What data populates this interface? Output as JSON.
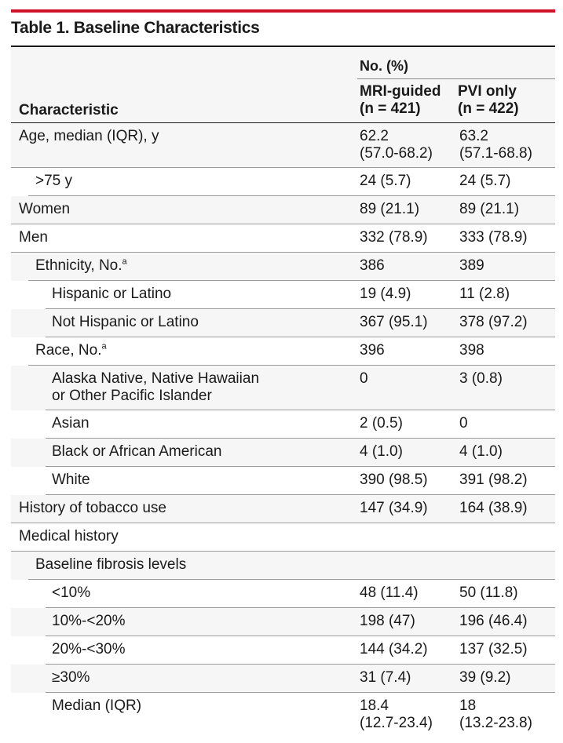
{
  "title": "Table 1. Baseline Characteristics",
  "header": {
    "group_label": "No. (%)",
    "characteristic_label": "Characteristic",
    "col_mri": "MRI-guided\n(n = 421)",
    "col_pvi": "PVI only\n(n = 422)"
  },
  "rows": [
    {
      "label": "Age, median (IQR), y",
      "mri": "62.2\n(57.0-68.2)",
      "pvi": "63.2\n(57.1-68.8)",
      "level": 0,
      "sup": ""
    },
    {
      "label": ">75 y",
      "mri": "24 (5.7)",
      "pvi": "24 (5.7)",
      "level": 1,
      "sup": ""
    },
    {
      "label": "Women",
      "mri": "89 (21.1)",
      "pvi": "89 (21.1)",
      "level": 0,
      "sup": ""
    },
    {
      "label": "Men",
      "mri": "332 (78.9)",
      "pvi": "333 (78.9)",
      "level": 0,
      "sup": ""
    },
    {
      "label": "Ethnicity, No.",
      "mri": "386",
      "pvi": "389",
      "level": 1,
      "sup": "a"
    },
    {
      "label": "Hispanic or Latino",
      "mri": "19 (4.9)",
      "pvi": "11 (2.8)",
      "level": 2,
      "sup": ""
    },
    {
      "label": "Not Hispanic or Latino",
      "mri": "367 (95.1)",
      "pvi": "378 (97.2)",
      "level": 2,
      "sup": ""
    },
    {
      "label": "Race, No.",
      "mri": "396",
      "pvi": "398",
      "level": 1,
      "sup": "a"
    },
    {
      "label": "Alaska Native, Native Hawaiian\nor Other Pacific Islander",
      "mri": "0",
      "pvi": "3 (0.8)",
      "level": 2,
      "sup": ""
    },
    {
      "label": "Asian",
      "mri": "2 (0.5)",
      "pvi": "0",
      "level": 2,
      "sup": ""
    },
    {
      "label": "Black or African American",
      "mri": "4 (1.0)",
      "pvi": "4 (1.0)",
      "level": 2,
      "sup": ""
    },
    {
      "label": "White",
      "mri": "390 (98.5)",
      "pvi": "391 (98.2)",
      "level": 2,
      "sup": ""
    },
    {
      "label": "History of tobacco use",
      "mri": "147 (34.9)",
      "pvi": "164 (38.9)",
      "level": 0,
      "sup": ""
    },
    {
      "label": "Medical history",
      "mri": "",
      "pvi": "",
      "level": 0,
      "sup": ""
    },
    {
      "label": "Baseline fibrosis levels",
      "mri": "",
      "pvi": "",
      "level": 1,
      "sup": ""
    },
    {
      "label": "<10%",
      "mri": "48 (11.4)",
      "pvi": "50 (11.8)",
      "level": 2,
      "sup": ""
    },
    {
      "label": "10%-<20%",
      "mri": "198 (47)",
      "pvi": "196 (46.4)",
      "level": 2,
      "sup": ""
    },
    {
      "label": "20%-<30%",
      "mri": "144 (34.2)",
      "pvi": "137 (32.5)",
      "level": 2,
      "sup": ""
    },
    {
      "label": "≥30%",
      "mri": "31 (7.4)",
      "pvi": "39 (9.2)",
      "level": 2,
      "sup": ""
    },
    {
      "label": "Median (IQR)",
      "mri": "18.4\n(12.7-23.4)",
      "pvi": "18\n(13.2-23.8)",
      "level": 2,
      "sup": ""
    }
  ],
  "colors": {
    "accent": "#d1122b",
    "shade": "#f6f6f6"
  }
}
